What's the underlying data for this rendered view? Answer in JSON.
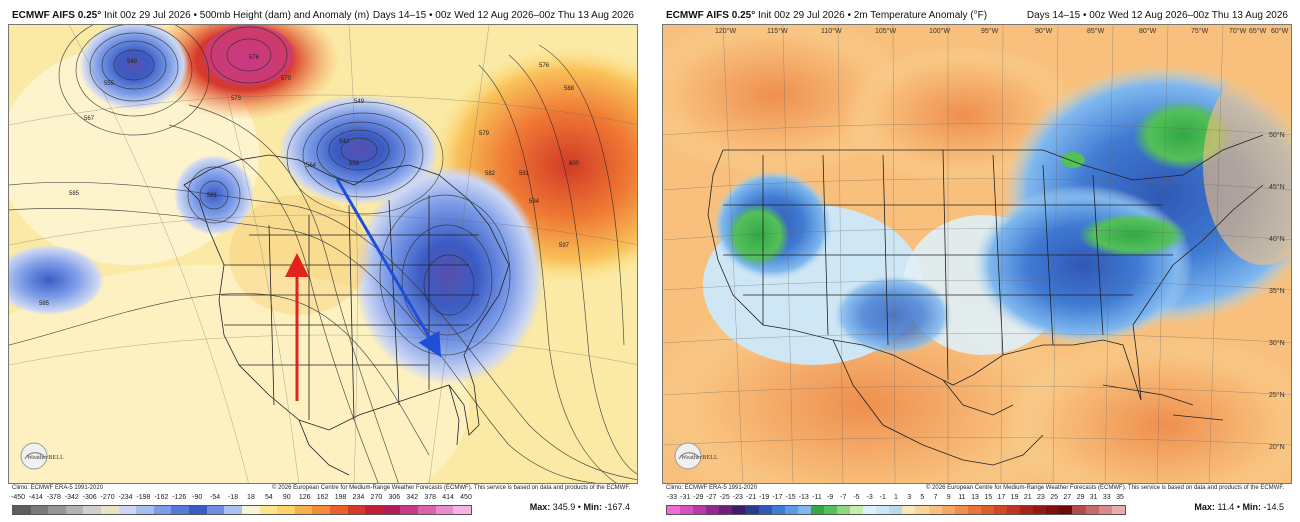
{
  "left": {
    "header_model": "ECMWF AIFS 0.25°",
    "header_title": "Init 00z 29 Jul 2026 • 500mb Height (dam) and Anomaly (m)",
    "header_valid": "Days 14–15 • 00z Wed 12 Aug 2026–00z Thu 13 Aug 2026",
    "climo": "Climo: ECMWF ERA-5 1991-2020",
    "copyright": "© 2026 European Centre for Medium-Range Weather Forecasts (ECMWF). This service is based on data and products of the ECMWF.",
    "logo_text": "WeatherBELL",
    "ticks": [
      "-450",
      "-414",
      "-378",
      "-342",
      "-306",
      "-270",
      "-234",
      "-198",
      "-162",
      "-126",
      "-90",
      "-54",
      "-18",
      "18",
      "54",
      "90",
      "126",
      "162",
      "198",
      "234",
      "270",
      "306",
      "342",
      "378",
      "414",
      "450"
    ],
    "colors": [
      "#5e5e5e",
      "#7a7a7a",
      "#969696",
      "#b3b3b3",
      "#cfcfcf",
      "#e8e3c0",
      "#cdd7f2",
      "#a6bdf0",
      "#7c9ce8",
      "#5479d8",
      "#3a5cc4",
      "#6f8ee0",
      "#a9c0f0",
      "#f7f4d6",
      "#fde68a",
      "#fcd36a",
      "#f9b04c",
      "#f48a3a",
      "#ea5f2a",
      "#d6392b",
      "#c21e3a",
      "#b31c57",
      "#c93b86",
      "#da62ae",
      "#e98bce",
      "#f4b3e6"
    ],
    "max_label": "Max:",
    "max_value": "345.9",
    "min_label": "Min:",
    "min_value": "-167.4",
    "contour_labels": [
      "549",
      "555",
      "567",
      "585",
      "561",
      "573",
      "576",
      "570",
      "576",
      "588",
      "579",
      "582",
      "591",
      "594",
      "597",
      "600",
      "558",
      "543",
      "549",
      "585",
      "564"
    ]
  },
  "right": {
    "header_model": "ECMWF AIFS 0.25°",
    "header_title": "Init 00z 29 Jul 2026 • 2m Temperature Anomaly (°F)",
    "header_valid": "Days 14–15 • 00z Wed 12 Aug 2026–00z Thu 13 Aug 2026",
    "climo": "Climo: ECMWF ERA-5 1991-2020",
    "copyright": "© 2026 European Centre for Medium-Range Weather Forecasts (ECMWF). This service is based on data and products of the ECMWF.",
    "logo_text": "WeatherBELL",
    "ticks": [
      "-33",
      "-31",
      "-29",
      "-27",
      "-25",
      "-23",
      "-21",
      "-19",
      "-17",
      "-15",
      "-13",
      "-11",
      "-9",
      "-7",
      "-5",
      "-3",
      "-1",
      "1",
      "3",
      "5",
      "7",
      "9",
      "11",
      "13",
      "15",
      "17",
      "19",
      "21",
      "23",
      "25",
      "27",
      "29",
      "31",
      "33",
      "35"
    ],
    "colors": [
      "#f06bd2",
      "#d84fc0",
      "#b83aa8",
      "#8f2a8e",
      "#6b1f78",
      "#3a1e6a",
      "#2a3b8f",
      "#3058b5",
      "#3f7ad3",
      "#5c9be6",
      "#7fb8ef",
      "#33a845",
      "#54c05a",
      "#8fd77e",
      "#c7ebb0",
      "#dff0f8",
      "#cfe6f5",
      "#b8daf0",
      "#f6e8b8",
      "#f9d59a",
      "#f8c07c",
      "#f5a864",
      "#ef8f4e",
      "#e7763d",
      "#dc5e30",
      "#cf4826",
      "#bd3520",
      "#a72418",
      "#931812",
      "#7f0f0c",
      "#6b0a08",
      "#b44b4b",
      "#c86b6b",
      "#d98a8a",
      "#e8acac"
    ],
    "max_label": "Max:",
    "max_value": "11.4",
    "min_label": "Min:",
    "min_value": "-14.5",
    "lon_labels": [
      "120°W",
      "115°W",
      "110°W",
      "105°W",
      "100°W",
      "95°W",
      "90°W",
      "85°W",
      "80°W",
      "75°W",
      "70°W",
      "65°W",
      "60°W"
    ],
    "lat_labels": [
      "50°N",
      "45°N",
      "40°N",
      "35°N",
      "30°N",
      "25°N",
      "20°N"
    ]
  }
}
